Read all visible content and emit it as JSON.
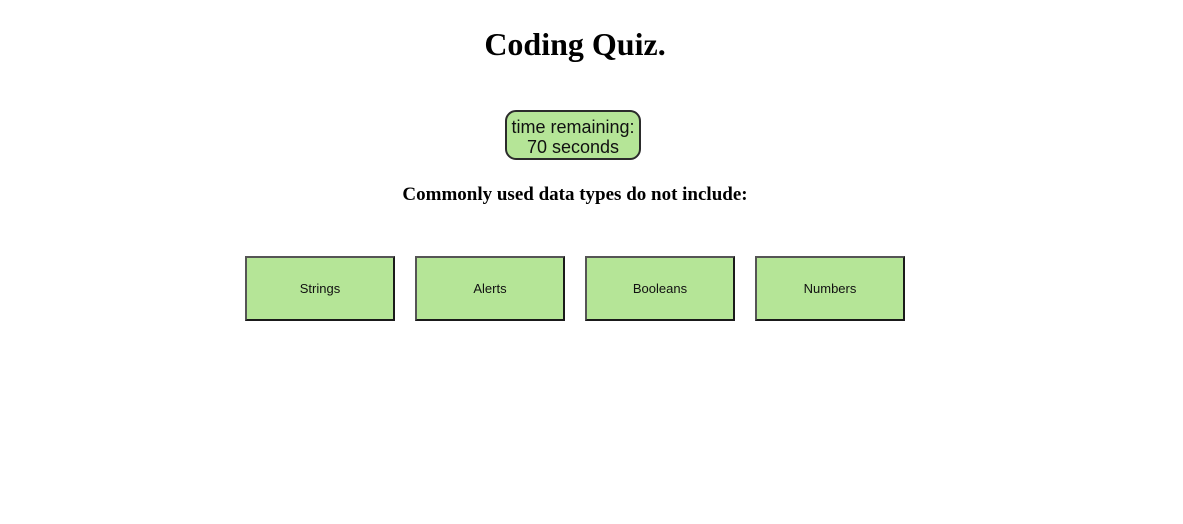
{
  "header": {
    "title": "Coding Quiz."
  },
  "timer": {
    "label": "time remaining:",
    "value": "70 seconds"
  },
  "question": {
    "text": "Commonly used data types do not include:"
  },
  "answers": [
    {
      "label": "Strings"
    },
    {
      "label": "Alerts"
    },
    {
      "label": "Booleans"
    },
    {
      "label": "Numbers"
    }
  ],
  "colors": {
    "accent": "#b5e597",
    "border": "#1a1a1a",
    "background": "#ffffff"
  }
}
